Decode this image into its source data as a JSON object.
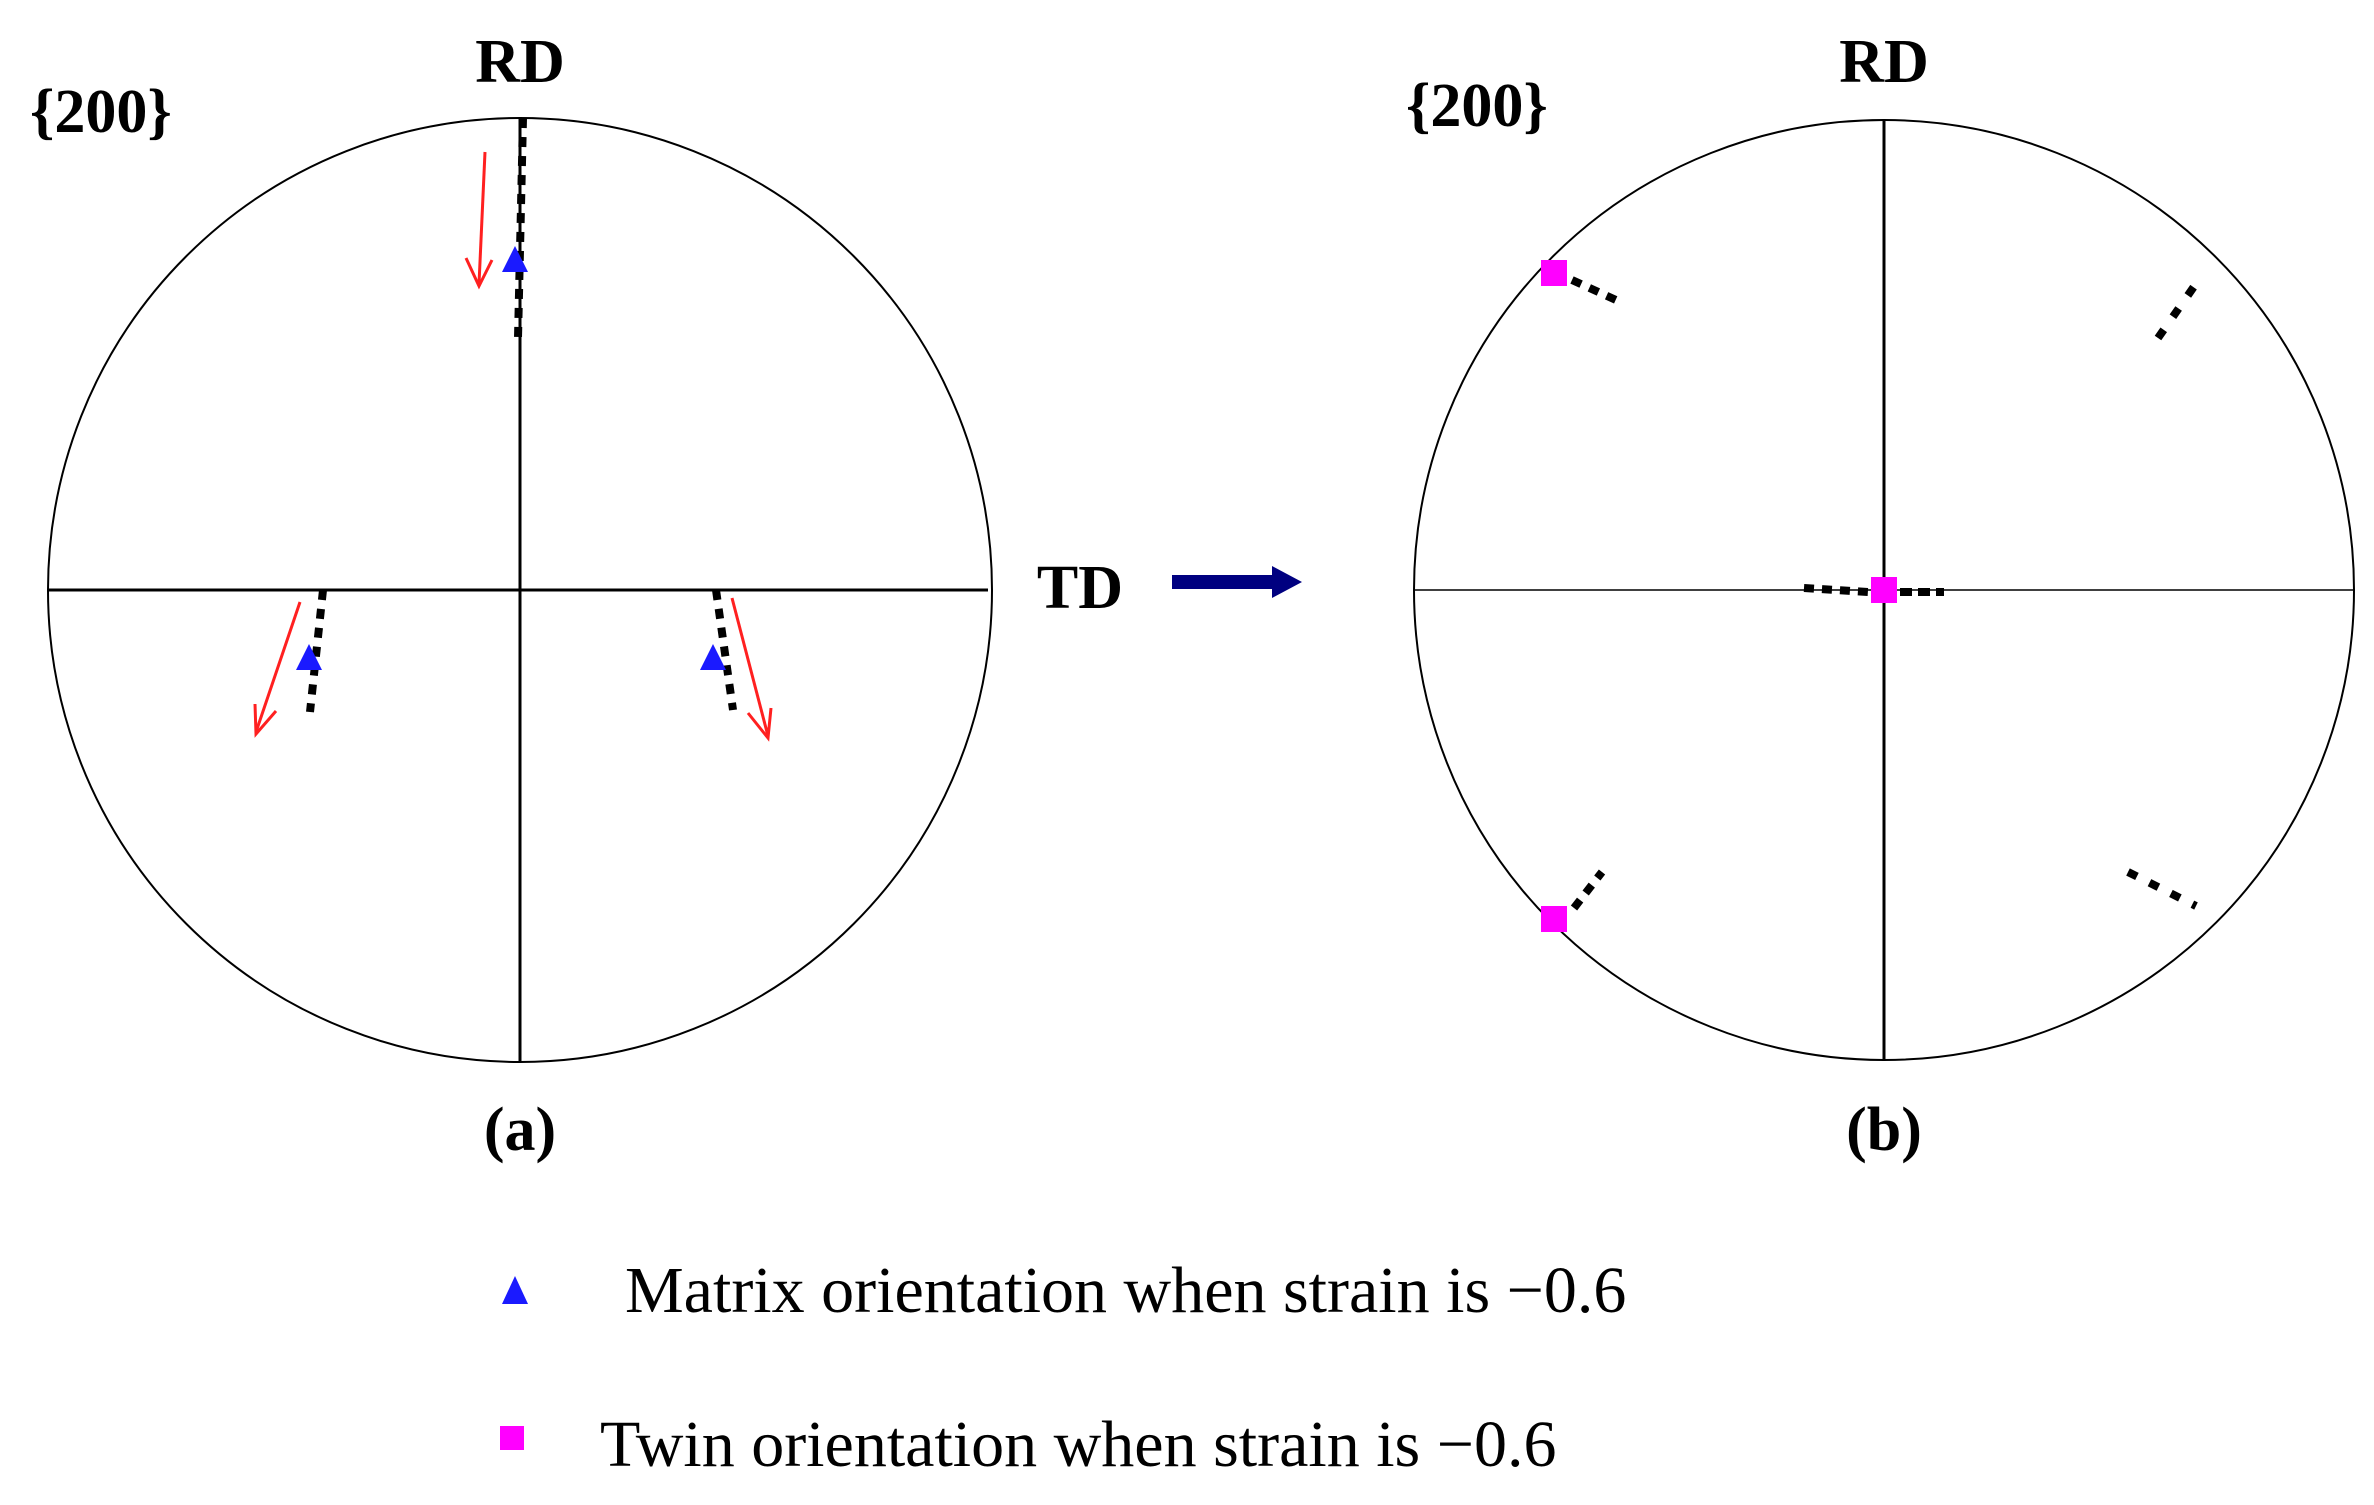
{
  "panel_a": {
    "plane_label": "{200}",
    "rd_label": "RD",
    "td_label": "TD",
    "caption": "(a)"
  },
  "panel_b": {
    "plane_label": "{200}",
    "rd_label": "RD",
    "caption": "(b)"
  },
  "legend": {
    "matrix_label": "Matrix orientation when strain is −0.6",
    "twin_label": "Twin orientation when strain is −0.6"
  },
  "colors": {
    "matrix_marker": "#1a1aff",
    "twin_marker": "#ff00ff",
    "rotation_arrow": "#ff2020",
    "transition_arrow": "#000080",
    "traces": "#000000"
  }
}
